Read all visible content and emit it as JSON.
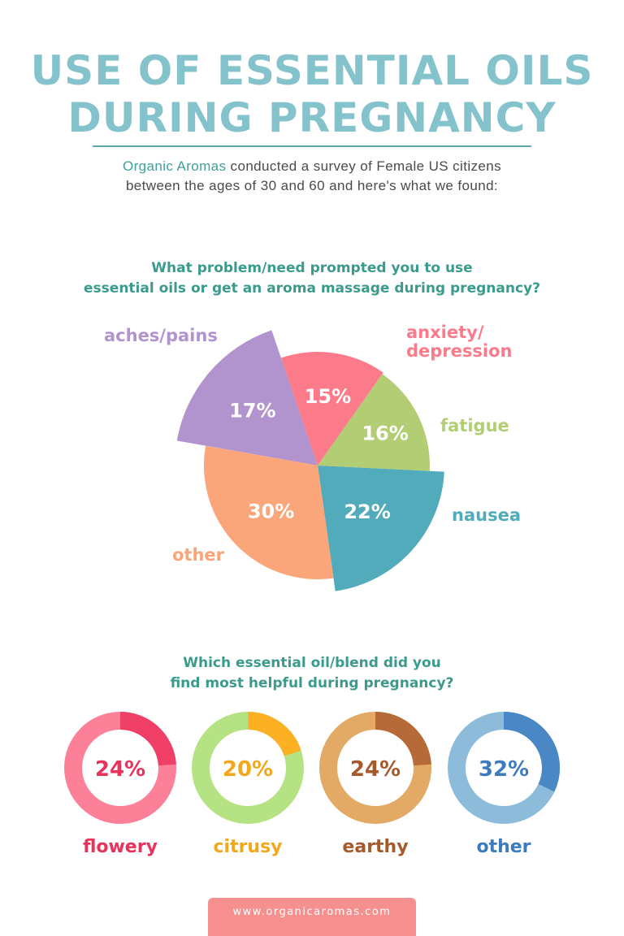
{
  "title": {
    "line1": "USE OF ESSENTIAL OILS",
    "line2": "DURING PREGNANCY"
  },
  "intro": {
    "brand": "Organic Aromas",
    "line1_rest": " conducted a survey of Female US citizens",
    "line2": "between the ages of 30 and 60 and here's what we found:"
  },
  "footer": {
    "url": "www.organicaromas.com"
  },
  "chart_data": [
    {
      "type": "pie",
      "title_lines": [
        "What problem/need prompted you to use",
        "essential oils or get an aroma massage during pregnancy?"
      ],
      "slices": [
        {
          "label": "aches/pains",
          "value": 17,
          "display": "17%",
          "color": "#b193cd"
        },
        {
          "label": "anxiety/ depression",
          "value": 15,
          "display": "15%",
          "color": "#fc7b8b"
        },
        {
          "label": "fatigue",
          "value": 16,
          "display": "16%",
          "color": "#b3cd74"
        },
        {
          "label": "nausea",
          "value": 22,
          "display": "22%",
          "color": "#52abbb"
        },
        {
          "label": "other",
          "value": 30,
          "display": "30%",
          "color": "#fba57a"
        }
      ]
    },
    {
      "type": "pie",
      "subtype": "donut",
      "title_lines": [
        "Which essential oil/blend did you",
        "find most helpful during pregnancy?"
      ],
      "items": [
        {
          "label": "flowery",
          "value": 24,
          "display": "24%",
          "ring_color": "#fc8198",
          "accent_color": "#ef3f66",
          "label_color": "#e8335a"
        },
        {
          "label": "citrusy",
          "value": 20,
          "display": "20%",
          "ring_color": "#b5e384",
          "accent_color": "#fcb024",
          "label_color": "#f2a81d"
        },
        {
          "label": "earthy",
          "value": 24,
          "display": "24%",
          "ring_color": "#e2aa65",
          "accent_color": "#b66a38",
          "label_color": "#a65a2c"
        },
        {
          "label": "other",
          "value": 32,
          "display": "32%",
          "ring_color": "#8dbcdb",
          "accent_color": "#4a87c5",
          "label_color": "#3d7bbf"
        }
      ]
    }
  ]
}
